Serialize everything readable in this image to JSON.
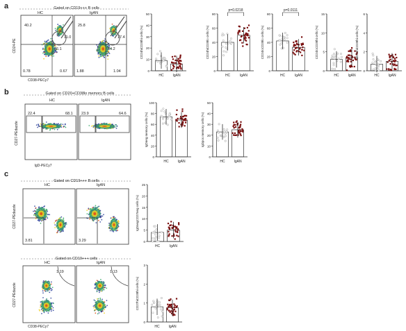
{
  "panels": {
    "a": {
      "letter": "a",
      "gate_title": "Gated on CD19+++ B cells",
      "flow_group_labels": [
        "HC",
        "IgAN"
      ],
      "flow_axis_y": "CD24-PE",
      "flow_axis_x": "CD38-PECy7",
      "flow_values": {
        "hc": [
          "40.2",
          "11.0",
          "36.1",
          "0.78",
          "0.67"
        ],
        "igan": [
          "25.8",
          "17.4",
          "34.2",
          "1.88",
          "1.04"
        ]
      }
    },
    "b": {
      "letter": "b",
      "gate_title": "Gated on CD20+CD38lo memory B cells",
      "flow_group_labels": [
        "HC",
        "IgAN"
      ],
      "flow_axis_y": "CD27-PEdazzle",
      "flow_axis_x": "IgD-PECy7",
      "flow_values": {
        "hc": [
          "22.4",
          "68.1"
        ],
        "igan": [
          "23.9",
          "64.6"
        ]
      }
    },
    "c": {
      "letter": "c",
      "gate_title": "Gated on CD19+++ B cells",
      "flow_group_labels": [
        "HC",
        "IgAN"
      ],
      "flow_axis_y": "CD27-PEdazzle",
      "flow_axis_x": "IgD-PECy7",
      "flow_values": {
        "hc": [
          "3.81"
        ],
        "igan": [
          "3.29"
        ]
      },
      "gate_title_2": "Gated on CD19+++ cells",
      "flow_axis_y2": "CD27-PEdazzle",
      "flow_axis_x2": "CD38-PECy7",
      "flow_values_2": {
        "hc": [
          "1.19"
        ],
        "igan": [
          "1.13"
        ]
      }
    }
  },
  "chart_data": [
    {
      "type": "scatter",
      "panel": "a",
      "ylabel": "CD24hiCD38hi cells (%)",
      "categories": [
        "HC",
        "IgAN"
      ],
      "ylim": [
        0,
        50
      ],
      "yticks": [
        0,
        10,
        20,
        30,
        40,
        50
      ],
      "series": [
        {
          "values": [
            9,
            6
          ]
        }
      ],
      "pvalue": ""
    },
    {
      "type": "scatter",
      "panel": "a",
      "ylabel": "CD24hiCD38lo cells (%)",
      "categories": [
        "HC",
        "IgAN"
      ],
      "ylim": [
        0,
        80
      ],
      "yticks": [
        0,
        20,
        40,
        60,
        80
      ],
      "series": [
        {
          "values": [
            40,
            50
          ]
        }
      ],
      "pvalue": "p=0.0218"
    },
    {
      "type": "scatter",
      "panel": "a",
      "ylabel": "CD24loCD38lo cells (%)",
      "categories": [
        "HC",
        "IgAN"
      ],
      "ylim": [
        0,
        80
      ],
      "yticks": [
        0,
        20,
        40,
        60,
        80
      ],
      "series": [
        {
          "values": [
            42,
            33
          ]
        }
      ],
      "pvalue": "p=0.0111"
    },
    {
      "type": "scatter",
      "panel": "a",
      "ylabel": "CD24loCD38hi cells (%)",
      "categories": [
        "HC",
        "IgAN"
      ],
      "ylim": [
        0,
        15
      ],
      "yticks": [
        0,
        5,
        10,
        15
      ],
      "series": [
        {
          "values": [
            3,
            3.5
          ]
        }
      ],
      "pvalue": ""
    },
    {
      "type": "scatter",
      "panel": "a",
      "ylabel": "CD24hiCD38hi cells (%)",
      "categories": [
        "HC",
        "IgAN"
      ],
      "ylim": [
        0,
        6
      ],
      "yticks": [
        0,
        2,
        4,
        6
      ],
      "series": [
        {
          "values": [
            0.7,
            1
          ]
        }
      ],
      "pvalue": ""
    },
    {
      "type": "scatter",
      "panel": "b",
      "ylabel": "IgDneg memory cells (%)",
      "categories": [
        "HC",
        "IgAN"
      ],
      "ylim": [
        0,
        100
      ],
      "yticks": [
        0,
        20,
        40,
        60,
        80,
        100
      ],
      "series": [
        {
          "values": [
            74,
            68
          ]
        }
      ],
      "pvalue": ""
    },
    {
      "type": "scatter",
      "panel": "b",
      "ylabel": "IgDpos memory cells (%)",
      "categories": [
        "HC",
        "IgAN"
      ],
      "ylim": [
        0,
        50
      ],
      "yticks": [
        0,
        10,
        20,
        30,
        40,
        50
      ],
      "series": [
        {
          "values": [
            23,
            25
          ]
        }
      ],
      "pvalue": ""
    },
    {
      "type": "scatter",
      "panel": "c",
      "ylabel": "IgDnegCD27neg cells (%)",
      "categories": [
        "HC",
        "IgAN"
      ],
      "ylim": [
        0,
        25
      ],
      "yticks": [
        0,
        5,
        10,
        15,
        20,
        25
      ],
      "series": [
        {
          "values": [
            4,
            5
          ]
        }
      ],
      "pvalue": ""
    },
    {
      "type": "scatter",
      "panel": "c",
      "ylabel": "CD27hiCD38hi cells (%)",
      "categories": [
        "HC",
        "IgAN"
      ],
      "ylim": [
        0,
        3
      ],
      "yticks": [
        0,
        1,
        2,
        3
      ],
      "series": [
        {
          "values": [
            0.8,
            0.75
          ]
        }
      ],
      "pvalue": ""
    }
  ],
  "colors": {
    "hc_points": "#b8b8b8",
    "igan_points": "#7a1010",
    "axis": "#222222",
    "flow_low": "#2a3f9a",
    "flow_mid": "#38a86a",
    "flow_high": "#f0d020",
    "flow_hot": "#e2501a"
  }
}
